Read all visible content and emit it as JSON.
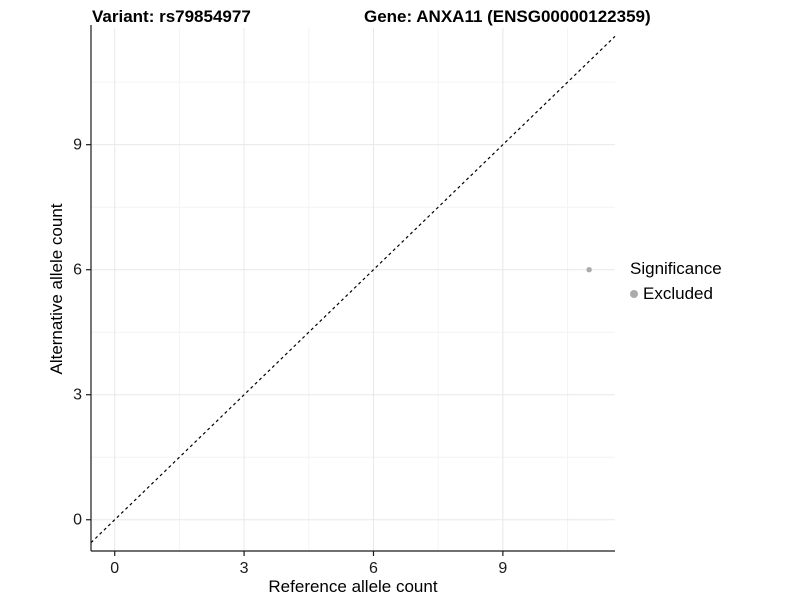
{
  "figure": {
    "background": "#ffffff"
  },
  "chart_data": {
    "type": "scatter",
    "titles": {
      "left": "Variant: rs79854977",
      "right": "Gene: ANXA11 (ENSG00000122359)"
    },
    "xlabel": "Reference allele count",
    "ylabel": "Alternative allele count",
    "xlim": [
      -0.55,
      11.6
    ],
    "ylim": [
      -0.75,
      11.8
    ],
    "xticks": [
      0,
      3,
      6,
      9
    ],
    "yticks": [
      0,
      3,
      6,
      9
    ],
    "xticks_minor": [
      1.5,
      4.5,
      7.5,
      10.5
    ],
    "yticks_minor": [
      1.5,
      4.5,
      7.5,
      10.5
    ],
    "grid": true,
    "identity_line": {
      "slope": 1,
      "intercept": 0,
      "style": "dashed",
      "color": "#000000"
    },
    "series": [
      {
        "name": "Excluded",
        "color": "#ababab",
        "points": [
          {
            "x": 11,
            "y": 6
          }
        ]
      }
    ],
    "legend": {
      "title": "Significance",
      "position": "right",
      "items": [
        {
          "label": "Excluded",
          "color": "#ababab"
        }
      ]
    },
    "colors": {
      "grid_major": "#e8e8e8",
      "grid_minor": "#f4f4f4",
      "axis": "#1a1a1a",
      "tick_label": "#1a1a1a"
    }
  }
}
